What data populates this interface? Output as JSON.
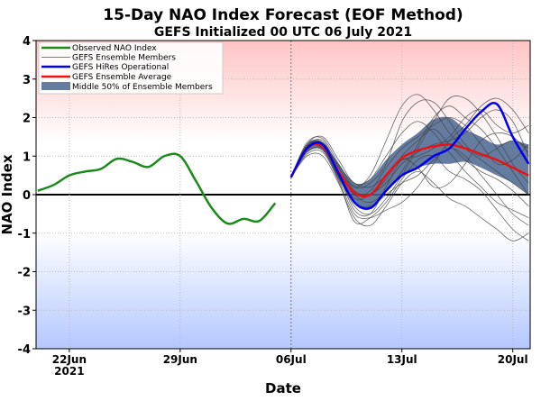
{
  "chart_data": {
    "type": "line",
    "title": "15-Day NAO Index Forecast (EOF Method)",
    "subtitle": "GEFS Initialized 00 UTC 06 July 2021",
    "xlabel": "Date",
    "ylabel": "NAO Index",
    "ylim": [
      -4,
      4
    ],
    "yticks": [
      "-4",
      "-3",
      "-2",
      "-1",
      "0",
      "1",
      "2",
      "3",
      "4"
    ],
    "xticks": [
      {
        "day": 2,
        "label": "22Jun",
        "sub": "2021"
      },
      {
        "day": 9,
        "label": "29Jun",
        "sub": ""
      },
      {
        "day": 16,
        "label": "06Jul",
        "sub": ""
      },
      {
        "day": 23,
        "label": "13Jul",
        "sub": ""
      },
      {
        "day": 30,
        "label": "20Jul",
        "sub": ""
      }
    ],
    "x_start": "2021-06-20",
    "xlim_days": [
      -0.1,
      31.1
    ],
    "grid": true,
    "legend_position": "top-left",
    "colors": {
      "observed": "#1a8a1a",
      "members": "#444444",
      "hires": "#0000ee",
      "mean": "#ee1111",
      "band": "#4a6590",
      "top": "#ffc4c4",
      "bottom": "#b4c8ff"
    },
    "observed": {
      "name": "Observed NAO Index",
      "dates_day": [
        0,
        1,
        2,
        3,
        4,
        5,
        6,
        7,
        8,
        9,
        10,
        11,
        12,
        13,
        14,
        15
      ],
      "values": [
        0.1,
        0.25,
        0.5,
        0.6,
        0.67,
        0.93,
        0.85,
        0.72,
        1.0,
        1.0,
        0.35,
        -0.35,
        -0.75,
        -0.63,
        -0.68,
        -0.22
      ]
    },
    "forecast_days": [
      16,
      17,
      18,
      19,
      20,
      21,
      22,
      23,
      24,
      25,
      26,
      27,
      28,
      29,
      30,
      31
    ],
    "members": {
      "name": "GEFS Ensemble Members",
      "values": [
        [
          0.45,
          1.25,
          1.4,
          0.7,
          0.2,
          0.5,
          1.4,
          2.3,
          2.6,
          2.2,
          1.6,
          1.2,
          0.9,
          0.6,
          0.3,
          0.0
        ],
        [
          0.45,
          1.2,
          1.3,
          0.5,
          -0.3,
          -0.5,
          -0.1,
          0.5,
          1.2,
          1.9,
          2.5,
          2.5,
          2.1,
          1.5,
          0.8,
          0.3
        ],
        [
          0.45,
          1.1,
          1.15,
          0.4,
          -0.5,
          -0.6,
          -0.4,
          -0.2,
          0.2,
          0.8,
          1.4,
          1.8,
          2.3,
          2.5,
          2.2,
          1.6
        ],
        [
          0.45,
          1.3,
          1.5,
          0.9,
          0.3,
          0.4,
          1.0,
          1.6,
          1.9,
          1.6,
          1.1,
          0.6,
          0.2,
          -0.2,
          -0.4,
          -0.6
        ],
        [
          0.45,
          1.0,
          1.0,
          0.3,
          -0.6,
          -0.8,
          -0.3,
          0.3,
          0.6,
          0.3,
          -0.1,
          -0.3,
          -0.6,
          -0.9,
          -1.2,
          -1.0
        ],
        [
          0.45,
          1.25,
          1.3,
          0.6,
          0.0,
          0.1,
          0.7,
          1.2,
          1.5,
          1.8,
          2.0,
          1.8,
          1.3,
          0.8,
          0.9,
          1.3
        ],
        [
          0.45,
          1.15,
          1.25,
          0.5,
          -0.1,
          0.0,
          0.3,
          0.8,
          1.1,
          1.3,
          1.4,
          1.6,
          2.0,
          2.2,
          1.9,
          1.0
        ],
        [
          0.45,
          1.35,
          1.45,
          0.8,
          0.2,
          0.3,
          0.8,
          1.9,
          2.4,
          2.4,
          1.9,
          1.3,
          1.0,
          1.2,
          1.4,
          1.2
        ],
        [
          0.45,
          1.2,
          1.2,
          0.45,
          -0.2,
          -0.3,
          0.0,
          0.3,
          0.5,
          0.9,
          1.2,
          1.0,
          0.5,
          0.0,
          -0.5,
          -0.8
        ],
        [
          0.45,
          1.1,
          1.2,
          0.5,
          -0.4,
          -0.5,
          0.2,
          0.9,
          0.7,
          0.2,
          0.3,
          0.8,
          1.4,
          1.6,
          1.5,
          1.1
        ],
        [
          0.45,
          1.3,
          1.35,
          0.7,
          0.1,
          0.0,
          0.4,
          1.0,
          1.4,
          1.7,
          1.3,
          0.9,
          0.6,
          0.4,
          0.1,
          -0.3
        ],
        [
          0.45,
          1.2,
          1.3,
          0.6,
          0.0,
          -0.2,
          0.1,
          0.6,
          1.3,
          2.0,
          2.3,
          2.0,
          1.7,
          1.2,
          0.6,
          0.0
        ],
        [
          0.45,
          1.05,
          1.1,
          0.35,
          -0.7,
          -0.6,
          -0.2,
          0.4,
          0.9,
          1.0,
          0.6,
          0.4,
          0.1,
          -0.4,
          -0.9,
          -1.2
        ],
        [
          0.45,
          1.25,
          1.35,
          0.75,
          0.3,
          0.2,
          0.5,
          0.9,
          1.0,
          1.2,
          1.5,
          2.0,
          2.2,
          1.8,
          1.6,
          1.8
        ]
      ]
    },
    "hires": {
      "name": "GEFS HiRes Operational",
      "values": [
        0.45,
        1.2,
        1.3,
        0.55,
        -0.2,
        -0.35,
        0.1,
        0.5,
        0.7,
        1.0,
        1.2,
        1.7,
        2.15,
        2.35,
        1.5,
        0.8
      ]
    },
    "mean": {
      "name": "GEFS Ensemble Average",
      "values": [
        0.45,
        1.2,
        1.25,
        0.6,
        0.05,
        0.0,
        0.5,
        0.95,
        1.15,
        1.25,
        1.3,
        1.2,
        1.05,
        0.9,
        0.7,
        0.5
      ]
    },
    "band": {
      "name": "Middle 50% of Ensemble Members",
      "upper": [
        0.45,
        1.3,
        1.35,
        0.8,
        0.3,
        0.4,
        0.9,
        1.3,
        1.6,
        1.95,
        2.0,
        1.7,
        1.5,
        1.3,
        1.4,
        1.3
      ],
      "lower": [
        0.45,
        1.1,
        1.15,
        0.4,
        -0.2,
        -0.35,
        0.1,
        0.5,
        0.7,
        0.8,
        0.8,
        0.85,
        0.7,
        0.5,
        0.3,
        0.0
      ]
    }
  }
}
